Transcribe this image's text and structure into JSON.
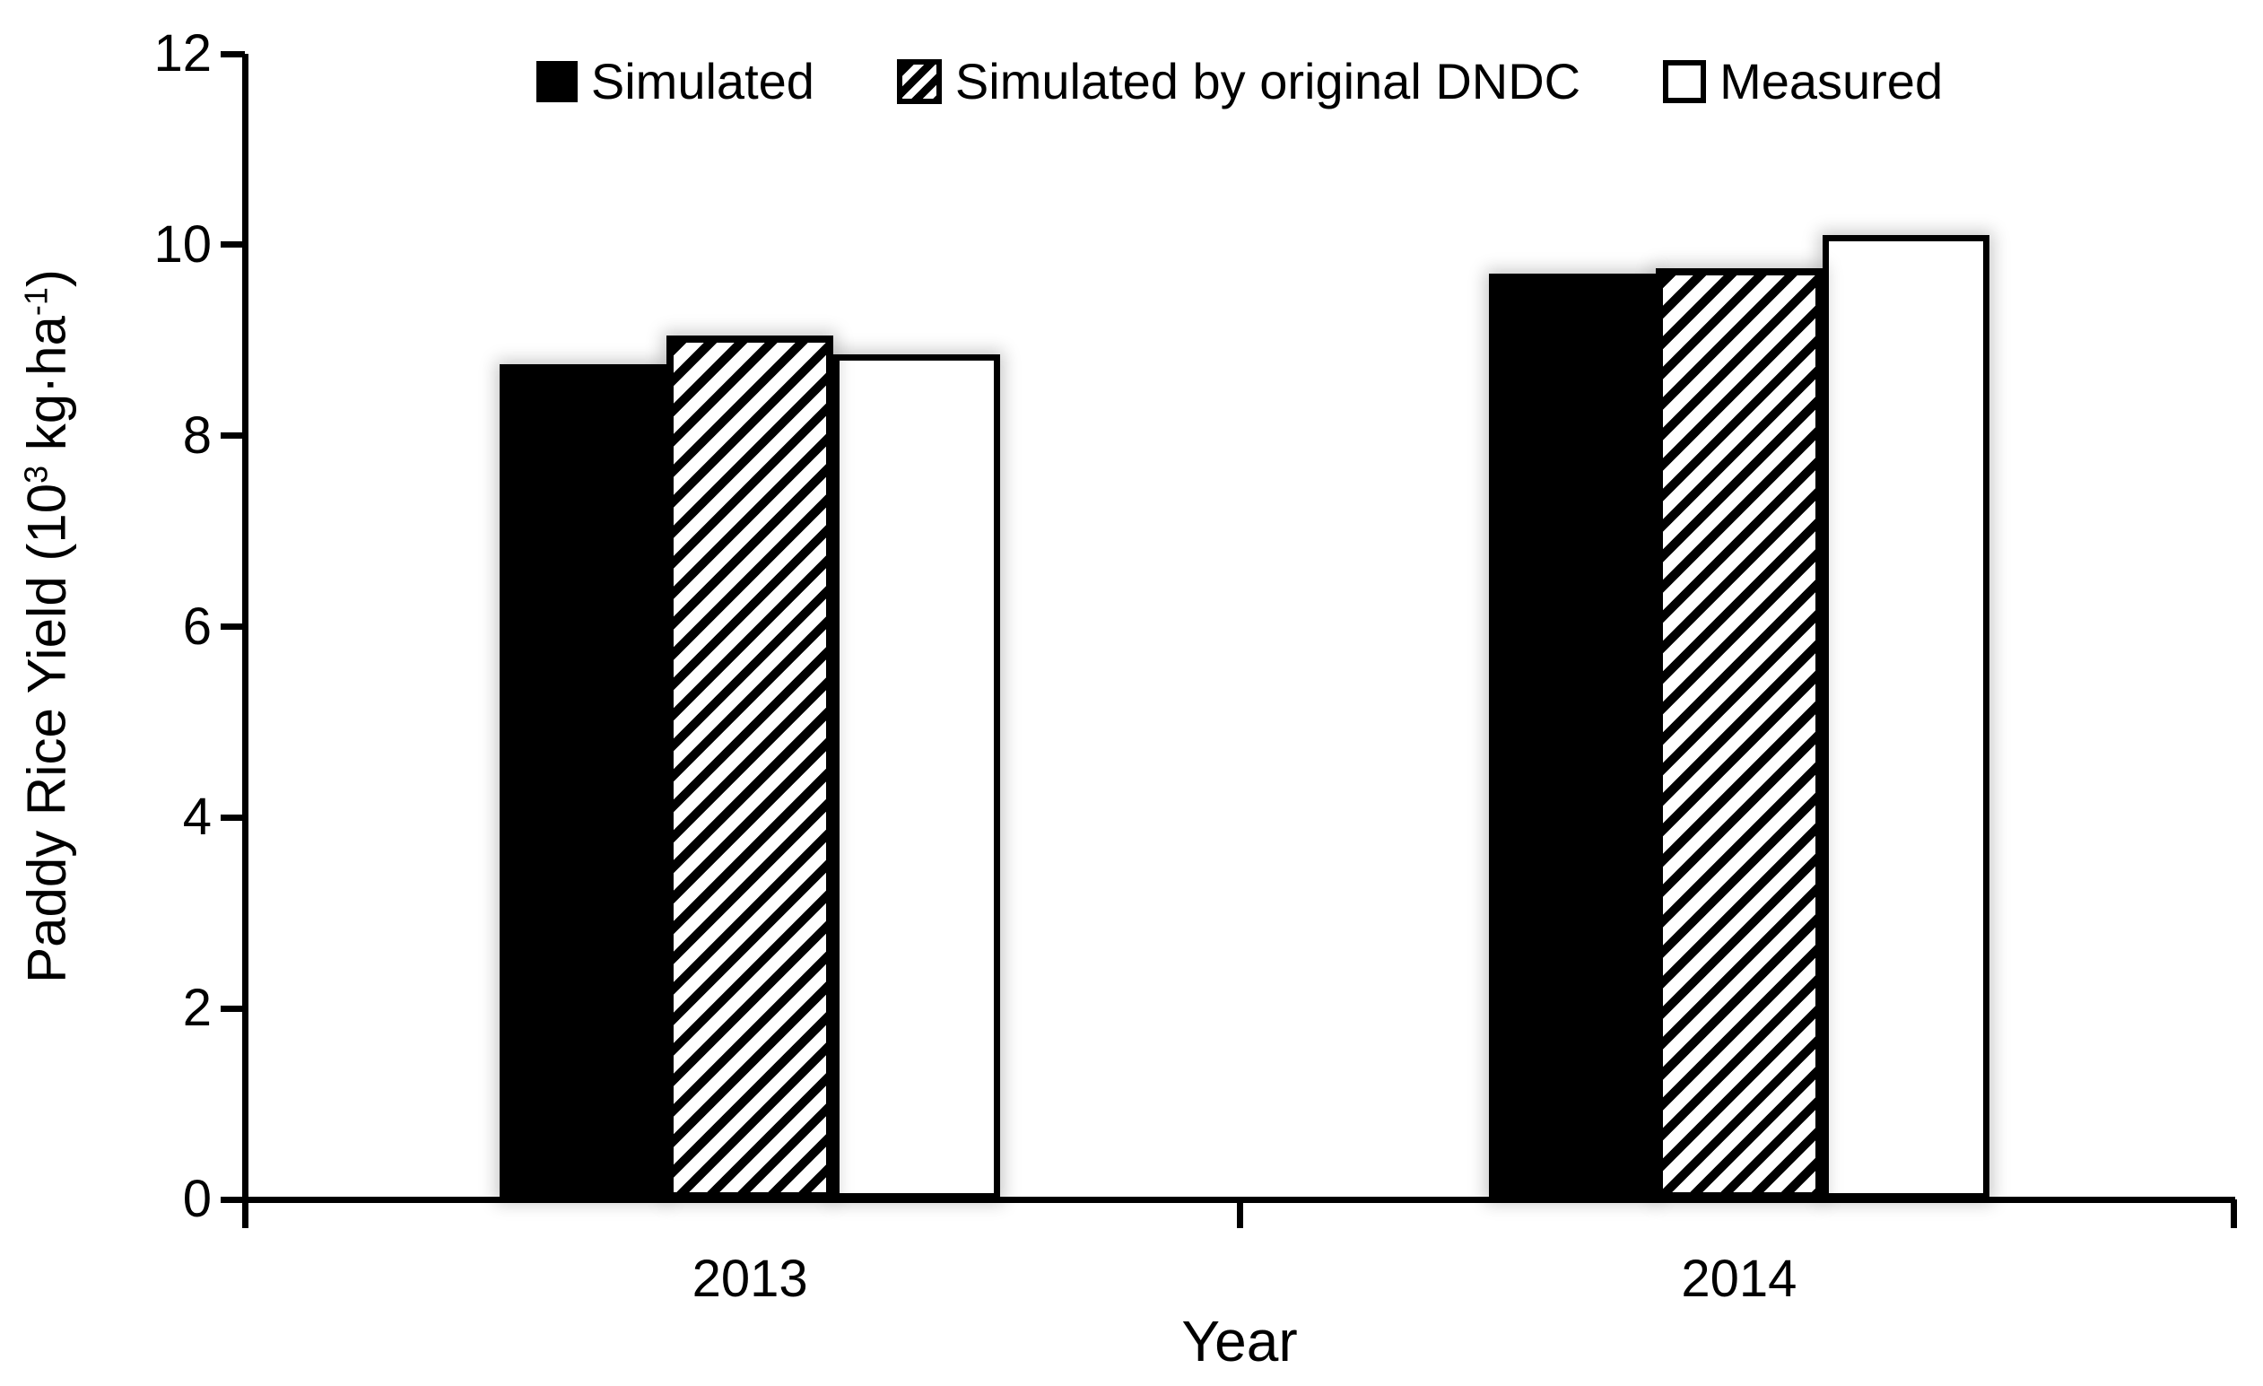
{
  "chart_data": {
    "type": "bar",
    "title": "",
    "categories": [
      "2013",
      "2014"
    ],
    "series": [
      {
        "name": "Simulated",
        "style": "solid-black",
        "values": [
          8.75,
          9.7
        ]
      },
      {
        "name": "Simulated by original DNDC",
        "style": "diagonal-hatch",
        "values": [
          9.05,
          9.75
        ]
      },
      {
        "name": "Measured",
        "style": "white-outline",
        "values": [
          8.85,
          10.1
        ]
      }
    ],
    "xlabel": "Year",
    "ylabel": "Paddy Rice Yield (10^3 kg·ha^-1)",
    "ylabel_parts": {
      "p1": "Paddy Rice Yield (10",
      "s1": "3",
      "p2": " kg·ha",
      "s2": "-1",
      "p3": ")"
    },
    "yticks": [
      "0",
      "2",
      "4",
      "6",
      "8",
      "10",
      "12"
    ],
    "ylim": [
      0,
      12
    ],
    "grid": false,
    "legend_position": "top-center",
    "colors": {
      "bar_solid": "#000000",
      "bar_outline": "#000000",
      "bar_white_fill": "#ffffff",
      "text": "#000000",
      "background": "#ffffff"
    }
  }
}
